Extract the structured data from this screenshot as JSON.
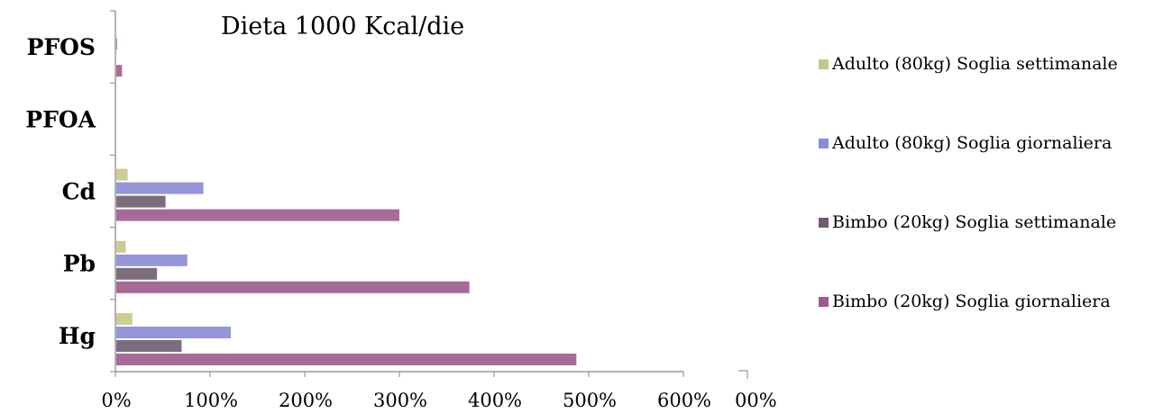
{
  "chart_data": {
    "type": "bar",
    "orientation": "horizontal",
    "title": "Dieta 1000 Kcal/die",
    "xlabel": "",
    "ylabel": "",
    "categories": [
      "Hg",
      "Pb",
      "Cd",
      "PFOA",
      "PFOS"
    ],
    "xlim": [
      0,
      600
    ],
    "x_ticks": [
      "0%",
      "100%",
      "200%",
      "300%",
      "400%",
      "500%",
      "600%"
    ],
    "extra_tick_fragment": "00%",
    "legend_position": "right",
    "series": [
      {
        "name": "Bimbo (20kg) Soglia giornaliera",
        "color": "#9e5a8c",
        "values": [
          486,
          373,
          299,
          0,
          6
        ]
      },
      {
        "name": "Bimbo (20kg) Soglia settimanale",
        "color": "#6e5d6e",
        "values": [
          69,
          43,
          52,
          0,
          0
        ]
      },
      {
        "name": "Adulto (80kg) Soglia giornaliera",
        "color": "#8a8ad6",
        "values": [
          121,
          75,
          92,
          0,
          1
        ]
      },
      {
        "name": "Adulto (80kg) Soglia settimanale",
        "color": "#c6c68a",
        "values": [
          17,
          10,
          12,
          0,
          0
        ]
      }
    ]
  }
}
